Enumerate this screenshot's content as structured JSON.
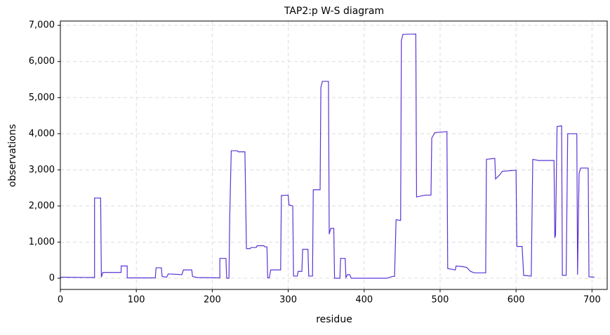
{
  "chart_data": {
    "type": "line",
    "title": "TAP2:p W-S diagram",
    "xlabel": "residue",
    "ylabel": "observations",
    "x": [
      0,
      2,
      45,
      45,
      53,
      54,
      56,
      80,
      80,
      88,
      88,
      125,
      126,
      133,
      134,
      140,
      142,
      160,
      162,
      173,
      174,
      180,
      210,
      210,
      218,
      219,
      222,
      223,
      225,
      233,
      234,
      243,
      245,
      250,
      251,
      258,
      259,
      268,
      269,
      272,
      273,
      275,
      277,
      290,
      291,
      300,
      301,
      306,
      307,
      312,
      313,
      318,
      319,
      326,
      327,
      332,
      333,
      342,
      343,
      345,
      353,
      354,
      356,
      360,
      361,
      368,
      369,
      375,
      376,
      378,
      381,
      383,
      430,
      437,
      440,
      442,
      448,
      449,
      451,
      468,
      469,
      480,
      488,
      489,
      493,
      509,
      510,
      520,
      521,
      530,
      535,
      540,
      545,
      560,
      561,
      572,
      573,
      578,
      582,
      600,
      601,
      608,
      610,
      620,
      622,
      630,
      650,
      651,
      652,
      654,
      660,
      661,
      666,
      668,
      680,
      681,
      683,
      685,
      695,
      696,
      703
    ],
    "values": [
      20,
      30,
      20,
      2220,
      2220,
      30,
      160,
      160,
      340,
      340,
      10,
      10,
      290,
      290,
      50,
      30,
      120,
      100,
      230,
      230,
      50,
      20,
      10,
      550,
      550,
      0,
      0,
      1700,
      3530,
      3530,
      3500,
      3500,
      820,
      820,
      850,
      850,
      900,
      900,
      870,
      870,
      10,
      10,
      230,
      230,
      2290,
      2300,
      2030,
      2000,
      60,
      60,
      190,
      190,
      800,
      800,
      60,
      60,
      2450,
      2450,
      5280,
      5450,
      5450,
      1220,
      1380,
      1380,
      0,
      0,
      550,
      550,
      20,
      100,
      100,
      0,
      0,
      50,
      50,
      1620,
      1600,
      6580,
      6750,
      6760,
      2250,
      2300,
      2300,
      3880,
      4030,
      4060,
      270,
      230,
      340,
      320,
      300,
      190,
      150,
      150,
      3290,
      3320,
      2750,
      2850,
      2960,
      2990,
      880,
      880,
      80,
      60,
      3290,
      3260,
      3260,
      1120,
      1200,
      4200,
      4220,
      80,
      80,
      4000,
      4000,
      100,
      2900,
      3050,
      3050,
      40,
      30
    ],
    "color": "#5b34d6",
    "xlim": [
      0,
      720
    ],
    "xticks": [
      0,
      100,
      200,
      300,
      400,
      500,
      600,
      700
    ],
    "ylim": [
      -310,
      7120
    ],
    "yticks": [
      0,
      {
        "value": 1000,
        "label": "1,000"
      },
      {
        "value": 2000,
        "label": "2,000"
      },
      {
        "value": 3000,
        "label": "3,000"
      },
      {
        "value": 4000,
        "label": "4,000"
      },
      {
        "value": 5000,
        "label": "5,000"
      },
      {
        "value": 6000,
        "label": "6,000"
      },
      {
        "value": 7000,
        "label": "7,000"
      }
    ],
    "grid": true
  }
}
